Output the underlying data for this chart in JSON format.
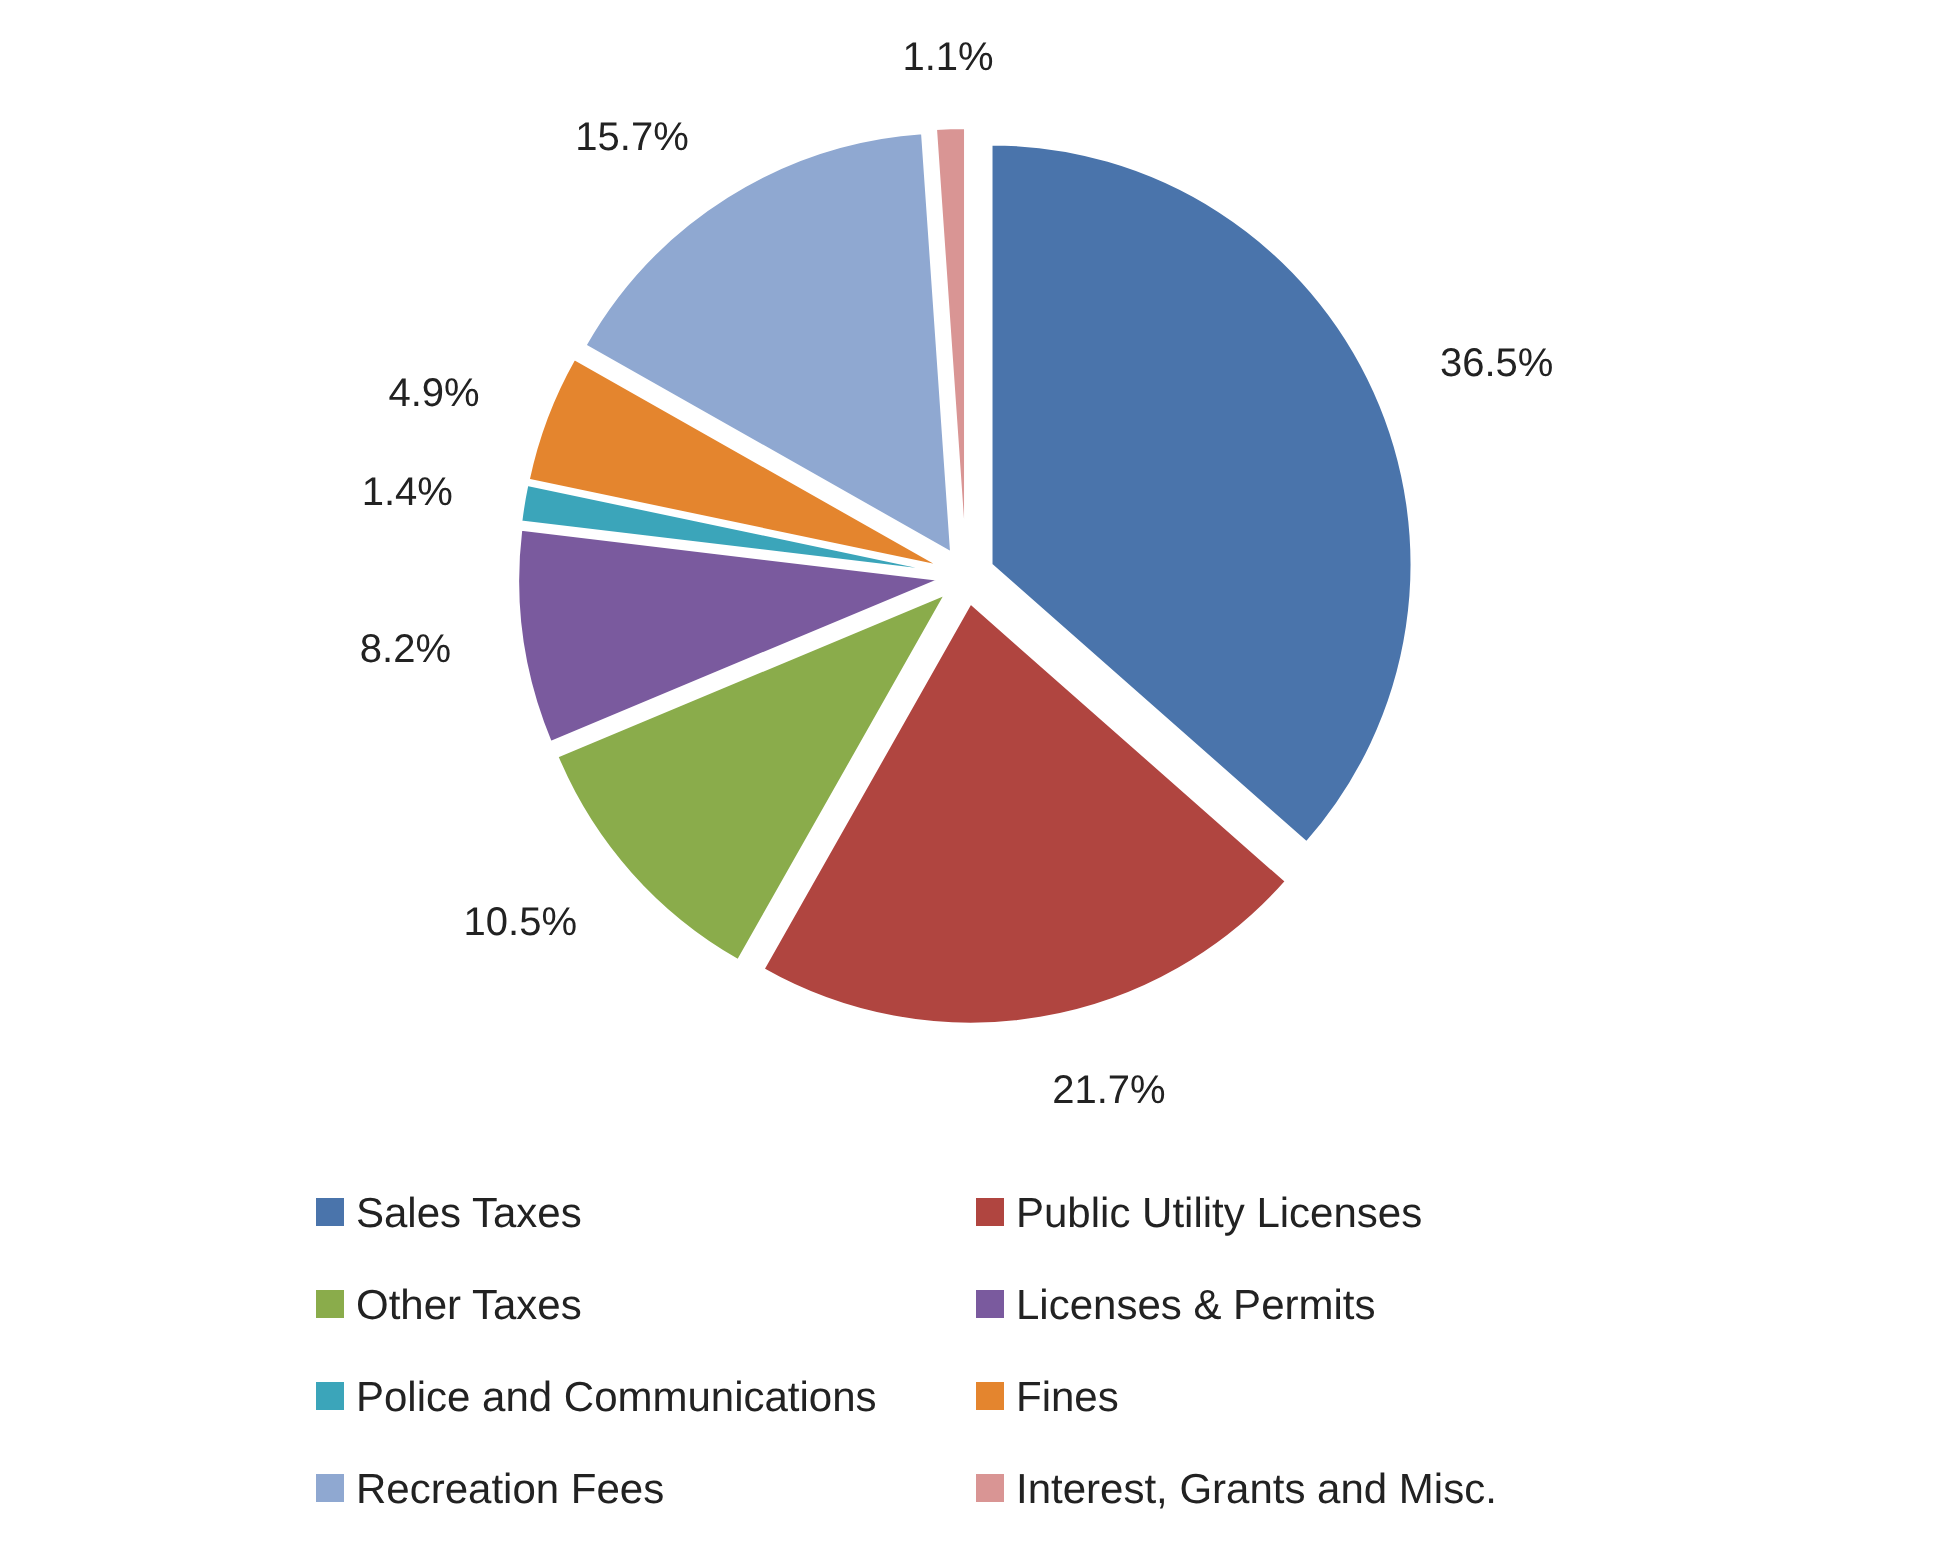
{
  "chart_data": {
    "type": "pie",
    "categories": [
      "Sales Taxes",
      "Public Utility Licenses",
      "Other Taxes",
      "Licenses & Permits",
      "Police and Communications",
      "Fines",
      "Recreation Fees",
      "Interest, Grants and Misc."
    ],
    "values": [
      36.5,
      21.7,
      10.5,
      8.2,
      1.4,
      4.9,
      15.7,
      1.1
    ],
    "value_labels": [
      "36.5%",
      "21.7%",
      "10.5%",
      "8.2%",
      "1.4%",
      "4.9%",
      "15.7%",
      "1.1%"
    ],
    "colors": [
      "#4a74ab",
      "#b04540",
      "#8aac4b",
      "#7a5a9e",
      "#3ba5ba",
      "#e4852e",
      "#8fa8d1",
      "#d99594"
    ],
    "legend": "bottom"
  }
}
